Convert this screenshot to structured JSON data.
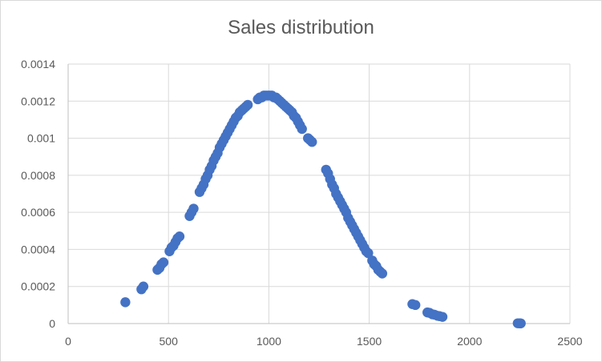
{
  "chart_data": {
    "type": "scatter",
    "title": "Sales distribution",
    "xlabel": "",
    "ylabel": "",
    "xlim": [
      0,
      2500
    ],
    "ylim": [
      0,
      0.0014
    ],
    "xticks": [
      0,
      500,
      1000,
      1500,
      2000,
      2500
    ],
    "yticks": [
      0,
      0.0002,
      0.0004,
      0.0006,
      0.0008,
      0.001,
      0.0012,
      0.0014
    ],
    "xtick_labels": [
      "0",
      "500",
      "1000",
      "1500",
      "2000",
      "2500"
    ],
    "ytick_labels": [
      "0",
      "0.0002",
      "0.0004",
      "0.0006",
      "0.0008",
      "0.001",
      "0.0012",
      "0.0014"
    ],
    "grid": true,
    "legend": "none",
    "marker_color": "#4472C4",
    "series": [
      {
        "points": [
          [
            285,
            0.000115
          ],
          [
            365,
            0.000185
          ],
          [
            375,
            0.0002
          ],
          [
            445,
            0.00029
          ],
          [
            455,
            0.0003
          ],
          [
            465,
            0.00032
          ],
          [
            475,
            0.00033
          ],
          [
            505,
            0.00039
          ],
          [
            515,
            0.00041
          ],
          [
            525,
            0.00042
          ],
          [
            535,
            0.00044
          ],
          [
            545,
            0.00046
          ],
          [
            555,
            0.00047
          ],
          [
            605,
            0.00058
          ],
          [
            615,
            0.0006
          ],
          [
            625,
            0.00062
          ],
          [
            655,
            0.00071
          ],
          [
            665,
            0.00073
          ],
          [
            675,
            0.00075
          ],
          [
            685,
            0.00078
          ],
          [
            695,
            0.0008
          ],
          [
            705,
            0.00083
          ],
          [
            715,
            0.00085
          ],
          [
            725,
            0.00088
          ],
          [
            735,
            0.0009
          ],
          [
            745,
            0.00092
          ],
          [
            755,
            0.00095
          ],
          [
            765,
            0.00097
          ],
          [
            775,
            0.00099
          ],
          [
            785,
            0.00101
          ],
          [
            795,
            0.00103
          ],
          [
            805,
            0.00105
          ],
          [
            815,
            0.00107
          ],
          [
            825,
            0.00109
          ],
          [
            835,
            0.00111
          ],
          [
            845,
            0.00112
          ],
          [
            855,
            0.00114
          ],
          [
            865,
            0.00115
          ],
          [
            875,
            0.00116
          ],
          [
            885,
            0.00117
          ],
          [
            895,
            0.00118
          ],
          [
            945,
            0.00121
          ],
          [
            955,
            0.00122
          ],
          [
            965,
            0.00122
          ],
          [
            975,
            0.00123
          ],
          [
            985,
            0.00123
          ],
          [
            995,
            0.00123
          ],
          [
            1005,
            0.00123
          ],
          [
            1015,
            0.00123
          ],
          [
            1025,
            0.00122
          ],
          [
            1035,
            0.00122
          ],
          [
            1045,
            0.00121
          ],
          [
            1055,
            0.0012
          ],
          [
            1065,
            0.00119
          ],
          [
            1075,
            0.00118
          ],
          [
            1085,
            0.00117
          ],
          [
            1095,
            0.00116
          ],
          [
            1105,
            0.00115
          ],
          [
            1115,
            0.00114
          ],
          [
            1125,
            0.00112
          ],
          [
            1135,
            0.00111
          ],
          [
            1145,
            0.00109
          ],
          [
            1155,
            0.00107
          ],
          [
            1165,
            0.00105
          ],
          [
            1195,
            0.001
          ],
          [
            1205,
            0.00099
          ],
          [
            1215,
            0.00098
          ],
          [
            1285,
            0.00083
          ],
          [
            1295,
            0.00081
          ],
          [
            1305,
            0.00078
          ],
          [
            1315,
            0.00075
          ],
          [
            1325,
            0.00073
          ],
          [
            1335,
            0.0007
          ],
          [
            1345,
            0.00068
          ],
          [
            1355,
            0.00066
          ],
          [
            1365,
            0.00064
          ],
          [
            1375,
            0.00062
          ],
          [
            1385,
            0.0006
          ],
          [
            1395,
            0.00057
          ],
          [
            1405,
            0.00055
          ],
          [
            1415,
            0.00053
          ],
          [
            1425,
            0.00051
          ],
          [
            1435,
            0.00049
          ],
          [
            1445,
            0.00047
          ],
          [
            1455,
            0.00045
          ],
          [
            1465,
            0.00043
          ],
          [
            1475,
            0.00041
          ],
          [
            1485,
            0.00039
          ],
          [
            1495,
            0.00038
          ],
          [
            1515,
            0.00034
          ],
          [
            1525,
            0.00032
          ],
          [
            1535,
            0.00031
          ],
          [
            1545,
            0.00029
          ],
          [
            1555,
            0.00028
          ],
          [
            1565,
            0.00027
          ],
          [
            1715,
            0.000105
          ],
          [
            1730,
            0.0001
          ],
          [
            1790,
            6e-05
          ],
          [
            1800,
            5.8e-05
          ],
          [
            1815,
            5e-05
          ],
          [
            1825,
            4.8e-05
          ],
          [
            1840,
            4.2e-05
          ],
          [
            1850,
            4e-05
          ],
          [
            1865,
            3.6e-05
          ],
          [
            2240,
            1.5e-06
          ],
          [
            2250,
            1.2e-06
          ],
          [
            2255,
            1e-06
          ]
        ]
      }
    ]
  }
}
